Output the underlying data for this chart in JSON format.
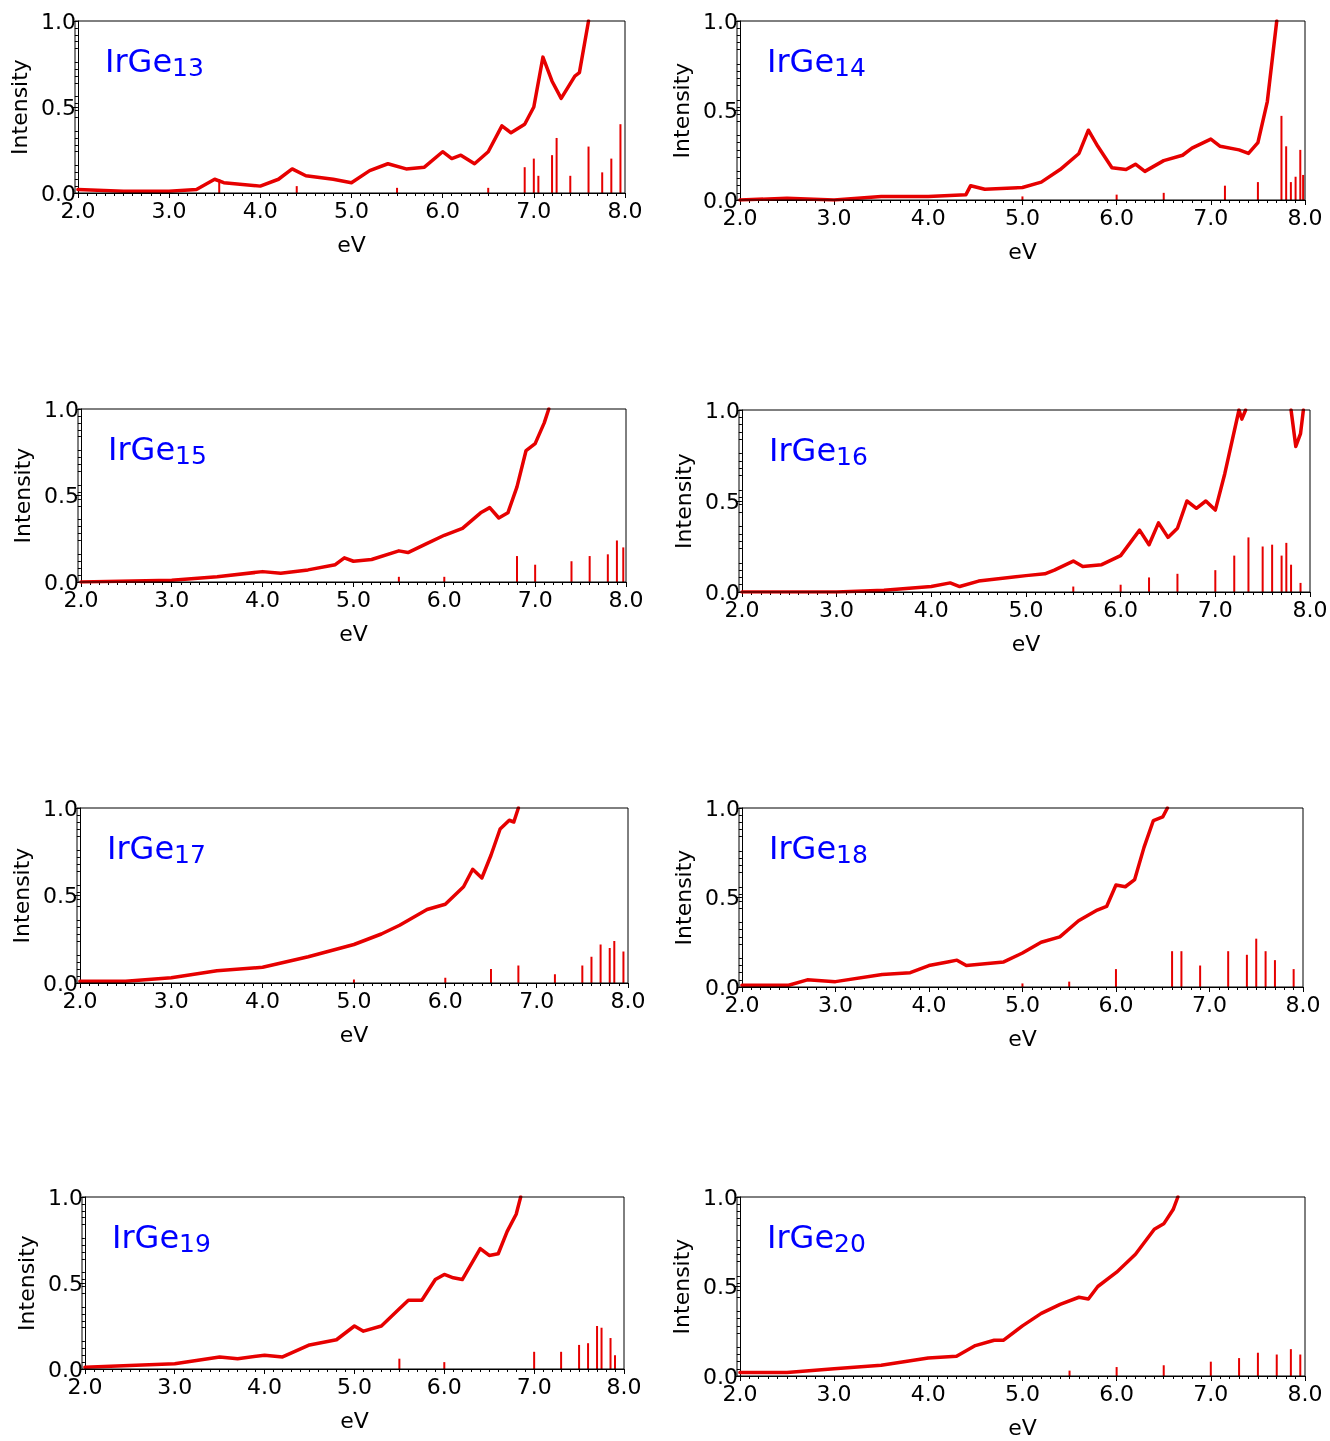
{
  "chart_data": [
    {
      "type": "line",
      "title": "IrGe$_{13}$",
      "xlabel": "eV",
      "ylabel": "Intensity",
      "marker": "none",
      "xlim": [
        2,
        8
      ],
      "xticks": [
        {
          "value": 2,
          "label": "2.0"
        },
        {
          "value": 3,
          "label": "3.0"
        },
        {
          "value": 4,
          "label": "4.0"
        },
        {
          "value": 5,
          "label": "5.0"
        },
        {
          "value": 6,
          "label": "6.0"
        },
        {
          "value": 7,
          "label": "7.0"
        },
        {
          "value": 8,
          "label": "8.0"
        }
      ],
      "ylim": [
        0,
        1
      ],
      "yticks": [
        {
          "value": 0,
          "label": "0.0"
        },
        {
          "value": 0.5,
          "label": "0.5"
        },
        {
          "value": 1,
          "label": "1.0"
        }
      ],
      "series": [
        {
          "color": "#e60000",
          "x": [
            2.0,
            2.5,
            3.0,
            3.3,
            3.5,
            3.6,
            4.0,
            4.2,
            4.35,
            4.5,
            4.8,
            5.0,
            5.2,
            5.4,
            5.6,
            5.8,
            6.0,
            6.1,
            6.2,
            6.35,
            6.5,
            6.65,
            6.75,
            6.9,
            7.0,
            7.1,
            7.2,
            7.3,
            7.45,
            7.5,
            7.6
          ],
          "values": [
            0.02,
            0.01,
            0.01,
            0.02,
            0.08,
            0.06,
            0.04,
            0.08,
            0.14,
            0.1,
            0.08,
            0.06,
            0.13,
            0.17,
            0.14,
            0.15,
            0.24,
            0.2,
            0.22,
            0.17,
            0.24,
            0.39,
            0.35,
            0.4,
            0.5,
            0.79,
            0.65,
            0.55,
            0.68,
            0.7,
            1.0
          ]
        },
        {
          "type": "bar",
          "color": "#e60000",
          "x": [
            3.55,
            4.4,
            5.5,
            6.5,
            6.9,
            7.0,
            7.05,
            7.2,
            7.25,
            7.4,
            7.6,
            7.75,
            7.85,
            7.95
          ],
          "values": [
            0.08,
            0.04,
            0.03,
            0.03,
            0.15,
            0.2,
            0.1,
            0.22,
            0.32,
            0.1,
            0.27,
            0.12,
            0.2,
            0.4
          ]
        }
      ]
    },
    {
      "type": "line",
      "title": "IrGe$_{14}$",
      "xlabel": "eV",
      "ylabel": "Intensity",
      "marker": "none",
      "xlim": [
        2,
        8
      ],
      "xticks": [
        {
          "value": 2,
          "label": "2.0"
        },
        {
          "value": 3,
          "label": "3.0"
        },
        {
          "value": 4,
          "label": "4.0"
        },
        {
          "value": 5,
          "label": "5.0"
        },
        {
          "value": 6,
          "label": "6.0"
        },
        {
          "value": 7,
          "label": "7.0"
        },
        {
          "value": 8,
          "label": "8.0"
        }
      ],
      "ylim": [
        0,
        1
      ],
      "yticks": [
        {
          "value": 0,
          "label": "0.0"
        },
        {
          "value": 0.5,
          "label": "0.5"
        },
        {
          "value": 1,
          "label": "1.0"
        }
      ],
      "series": [
        {
          "color": "#e60000",
          "x": [
            2.0,
            2.5,
            3.0,
            3.5,
            4.0,
            4.4,
            4.45,
            4.6,
            5.0,
            5.2,
            5.4,
            5.6,
            5.7,
            5.8,
            5.95,
            6.1,
            6.2,
            6.3,
            6.5,
            6.7,
            6.8,
            7.0,
            7.1,
            7.3,
            7.4,
            7.5,
            7.6,
            7.7
          ],
          "values": [
            0.0,
            0.01,
            0.0,
            0.02,
            0.02,
            0.03,
            0.08,
            0.06,
            0.07,
            0.1,
            0.17,
            0.26,
            0.39,
            0.3,
            0.18,
            0.17,
            0.2,
            0.16,
            0.22,
            0.25,
            0.29,
            0.34,
            0.3,
            0.28,
            0.26,
            0.32,
            0.55,
            1.0
          ]
        },
        {
          "type": "bar",
          "color": "#e60000",
          "x": [
            5.0,
            6.0,
            6.5,
            7.15,
            7.5,
            7.75,
            7.8,
            7.85,
            7.9,
            7.95,
            7.98
          ],
          "values": [
            0.02,
            0.03,
            0.04,
            0.08,
            0.1,
            0.47,
            0.3,
            0.1,
            0.13,
            0.28,
            0.14
          ]
        }
      ]
    },
    {
      "type": "line",
      "title": "IrGe$_{15}$",
      "xlabel": "eV",
      "ylabel": "Intensity",
      "marker": "none",
      "xlim": [
        2,
        8
      ],
      "xticks": [
        {
          "value": 2,
          "label": "2.0"
        },
        {
          "value": 3,
          "label": "3.0"
        },
        {
          "value": 4,
          "label": "4.0"
        },
        {
          "value": 5,
          "label": "5.0"
        },
        {
          "value": 6,
          "label": "6.0"
        },
        {
          "value": 7,
          "label": "7.0"
        },
        {
          "value": 8,
          "label": "8.0"
        }
      ],
      "ylim": [
        0,
        1
      ],
      "yticks": [
        {
          "value": 0,
          "label": "0.0"
        },
        {
          "value": 0.5,
          "label": "0.5"
        },
        {
          "value": 1,
          "label": "1.0"
        }
      ],
      "series": [
        {
          "color": "#e60000",
          "x": [
            2.0,
            3.0,
            3.5,
            4.0,
            4.2,
            4.5,
            4.8,
            4.9,
            5.0,
            5.2,
            5.5,
            5.6,
            5.8,
            6.0,
            6.2,
            6.4,
            6.5,
            6.6,
            6.7,
            6.8,
            6.9,
            7.0,
            7.1,
            7.15
          ],
          "values": [
            0.0,
            0.01,
            0.03,
            0.06,
            0.05,
            0.07,
            0.1,
            0.14,
            0.12,
            0.13,
            0.18,
            0.17,
            0.22,
            0.27,
            0.31,
            0.4,
            0.43,
            0.37,
            0.4,
            0.55,
            0.76,
            0.8,
            0.92,
            1.0
          ]
        },
        {
          "type": "bar",
          "color": "#e60000",
          "x": [
            5.5,
            6.0,
            6.8,
            7.0,
            7.4,
            7.6,
            7.8,
            7.9,
            7.97
          ],
          "values": [
            0.03,
            0.03,
            0.15,
            0.1,
            0.12,
            0.15,
            0.16,
            0.24,
            0.2
          ]
        }
      ]
    },
    {
      "type": "line",
      "title": "IrGe$_{16}$",
      "xlabel": "eV",
      "ylabel": "Intensity",
      "marker": "none",
      "xlim": [
        2,
        8
      ],
      "xticks": [
        {
          "value": 2,
          "label": "2.0"
        },
        {
          "value": 3,
          "label": "3.0"
        },
        {
          "value": 4,
          "label": "4.0"
        },
        {
          "value": 5,
          "label": "5.0"
        },
        {
          "value": 6,
          "label": "6.0"
        },
        {
          "value": 7,
          "label": "7.0"
        },
        {
          "value": 8,
          "label": "8.0"
        }
      ],
      "ylim": [
        0,
        1
      ],
      "yticks": [
        {
          "value": 0,
          "label": "0.0"
        },
        {
          "value": 0.5,
          "label": "0.5"
        },
        {
          "value": 1,
          "label": "1.0"
        }
      ],
      "series": [
        {
          "color": "#e60000",
          "x": [
            2.0,
            3.0,
            3.5,
            4.0,
            4.2,
            4.3,
            4.5,
            5.0,
            5.2,
            5.3,
            5.5,
            5.6,
            5.8,
            6.0,
            6.2,
            6.3,
            6.4,
            6.5,
            6.6,
            6.7,
            6.8,
            6.9,
            7.0,
            7.1,
            7.25,
            7.28,
            7.32,
            7.5,
            7.8,
            7.85,
            7.9,
            7.93
          ],
          "values": [
            0.0,
            0.0,
            0.01,
            0.03,
            0.05,
            0.03,
            0.06,
            0.09,
            0.1,
            0.12,
            0.17,
            0.14,
            0.15,
            0.2,
            0.34,
            0.26,
            0.38,
            0.3,
            0.35,
            0.5,
            0.46,
            0.5,
            0.45,
            0.65,
            1.0,
            0.95,
            1.0,
            null,
            1.0,
            0.8,
            0.87,
            1.0
          ]
        },
        {
          "type": "bar",
          "color": "#e60000",
          "x": [
            5.5,
            6.0,
            6.3,
            6.6,
            7.0,
            7.2,
            7.35,
            7.5,
            7.6,
            7.7,
            7.75,
            7.8,
            7.9
          ],
          "values": [
            0.03,
            0.04,
            0.08,
            0.1,
            0.12,
            0.2,
            0.3,
            0.25,
            0.26,
            0.2,
            0.27,
            0.15,
            0.05
          ]
        }
      ]
    },
    {
      "type": "line",
      "title": "IrGe$_{17}$",
      "xlabel": "eV",
      "ylabel": "Intensity",
      "marker": "none",
      "xlim": [
        2,
        8
      ],
      "xticks": [
        {
          "value": 2,
          "label": "2.0"
        },
        {
          "value": 3,
          "label": "3.0"
        },
        {
          "value": 4,
          "label": "4.0"
        },
        {
          "value": 5,
          "label": "5.0"
        },
        {
          "value": 6,
          "label": "6.0"
        },
        {
          "value": 7,
          "label": "7.0"
        },
        {
          "value": 8,
          "label": "8.0"
        }
      ],
      "ylim": [
        0,
        1
      ],
      "yticks": [
        {
          "value": 0,
          "label": "0.0"
        },
        {
          "value": 0.5,
          "label": "0.5"
        },
        {
          "value": 1,
          "label": "1.0"
        }
      ],
      "series": [
        {
          "color": "#e60000",
          "x": [
            2.0,
            2.5,
            3.0,
            3.5,
            4.0,
            4.5,
            5.0,
            5.3,
            5.5,
            5.8,
            6.0,
            6.2,
            6.3,
            6.4,
            6.5,
            6.6,
            6.7,
            6.75,
            6.8
          ],
          "values": [
            0.01,
            0.01,
            0.03,
            0.07,
            0.09,
            0.15,
            0.22,
            0.28,
            0.33,
            0.42,
            0.45,
            0.55,
            0.65,
            0.6,
            0.73,
            0.88,
            0.93,
            0.92,
            1.0
          ]
        },
        {
          "type": "bar",
          "color": "#e60000",
          "x": [
            5.0,
            6.0,
            6.5,
            6.8,
            7.2,
            7.5,
            7.6,
            7.7,
            7.8,
            7.85,
            7.95
          ],
          "values": [
            0.02,
            0.03,
            0.08,
            0.1,
            0.05,
            0.1,
            0.15,
            0.22,
            0.2,
            0.24,
            0.18
          ]
        }
      ]
    },
    {
      "type": "line",
      "title": "IrGe$_{18}$",
      "xlabel": "eV",
      "ylabel": "Intensity",
      "marker": "none",
      "xlim": [
        2,
        8
      ],
      "xticks": [
        {
          "value": 2,
          "label": "2.0"
        },
        {
          "value": 3,
          "label": "3.0"
        },
        {
          "value": 4,
          "label": "4.0"
        },
        {
          "value": 5,
          "label": "5.0"
        },
        {
          "value": 6,
          "label": "6.0"
        },
        {
          "value": 7,
          "label": "7.0"
        },
        {
          "value": 8,
          "label": "8.0"
        }
      ],
      "ylim": [
        0,
        1
      ],
      "yticks": [
        {
          "value": 0,
          "label": "0.0"
        },
        {
          "value": 0.5,
          "label": "0.5"
        },
        {
          "value": 1,
          "label": "1.0"
        }
      ],
      "series": [
        {
          "color": "#e60000",
          "x": [
            2.0,
            2.5,
            2.7,
            3.0,
            3.5,
            3.8,
            4.0,
            4.2,
            4.3,
            4.4,
            4.8,
            5.0,
            5.2,
            5.4,
            5.6,
            5.8,
            5.9,
            6.0,
            6.1,
            6.2,
            6.3,
            6.4,
            6.5,
            6.55
          ],
          "values": [
            0.01,
            0.01,
            0.04,
            0.03,
            0.07,
            0.08,
            0.12,
            0.14,
            0.15,
            0.12,
            0.14,
            0.19,
            0.25,
            0.28,
            0.37,
            0.43,
            0.45,
            0.57,
            0.56,
            0.6,
            0.78,
            0.93,
            0.95,
            1.0
          ]
        },
        {
          "type": "bar",
          "color": "#e60000",
          "x": [
            5.0,
            5.5,
            6.0,
            6.6,
            6.7,
            6.9,
            7.2,
            7.4,
            7.5,
            7.6,
            7.7,
            7.9
          ],
          "values": [
            0.02,
            0.03,
            0.1,
            0.2,
            0.2,
            0.12,
            0.2,
            0.18,
            0.27,
            0.2,
            0.15,
            0.1
          ]
        }
      ]
    },
    {
      "type": "line",
      "title": "IrGe$_{19}$",
      "xlabel": "eV",
      "ylabel": "Intensity",
      "marker": "none",
      "xlim": [
        2,
        8
      ],
      "xticks": [
        {
          "value": 2,
          "label": "2.0"
        },
        {
          "value": 3,
          "label": "3.0"
        },
        {
          "value": 4,
          "label": "4.0"
        },
        {
          "value": 5,
          "label": "5.0"
        },
        {
          "value": 6,
          "label": "6.0"
        },
        {
          "value": 7,
          "label": "7.0"
        },
        {
          "value": 8,
          "label": "8.0"
        }
      ],
      "ylim": [
        0,
        1
      ],
      "yticks": [
        {
          "value": 0,
          "label": "0.0"
        },
        {
          "value": 0.5,
          "label": "0.5"
        },
        {
          "value": 1,
          "label": "1.0"
        }
      ],
      "series": [
        {
          "color": "#e60000",
          "x": [
            2.0,
            2.5,
            3.0,
            3.5,
            3.7,
            4.0,
            4.2,
            4.5,
            4.8,
            5.0,
            5.1,
            5.3,
            5.5,
            5.6,
            5.75,
            5.9,
            6.0,
            6.1,
            6.2,
            6.4,
            6.5,
            6.6,
            6.7,
            6.8,
            6.85
          ],
          "values": [
            0.01,
            0.02,
            0.03,
            0.07,
            0.06,
            0.08,
            0.07,
            0.14,
            0.17,
            0.25,
            0.22,
            0.25,
            0.35,
            0.4,
            0.4,
            0.52,
            0.55,
            0.53,
            0.52,
            0.7,
            0.66,
            0.67,
            0.8,
            0.9,
            1.0
          ]
        },
        {
          "type": "bar",
          "color": "#e60000",
          "x": [
            5.5,
            6.0,
            7.0,
            7.3,
            7.5,
            7.6,
            7.7,
            7.75,
            7.85,
            7.9
          ],
          "values": [
            0.06,
            0.04,
            0.1,
            0.1,
            0.14,
            0.15,
            0.25,
            0.24,
            0.18,
            0.08
          ]
        }
      ]
    },
    {
      "type": "line",
      "title": "IrGe$_{20}$",
      "xlabel": "eV",
      "ylabel": "Intensity",
      "marker": "none",
      "xlim": [
        2,
        8
      ],
      "xticks": [
        {
          "value": 2,
          "label": "2.0"
        },
        {
          "value": 3,
          "label": "3.0"
        },
        {
          "value": 4,
          "label": "4.0"
        },
        {
          "value": 5,
          "label": "5.0"
        },
        {
          "value": 6,
          "label": "6.0"
        },
        {
          "value": 7,
          "label": "7.0"
        },
        {
          "value": 8,
          "label": "8.0"
        }
      ],
      "ylim": [
        0,
        1
      ],
      "yticks": [
        {
          "value": 0,
          "label": "0.0"
        },
        {
          "value": 0.5,
          "label": "0.5"
        },
        {
          "value": 1,
          "label": "1.0"
        }
      ],
      "series": [
        {
          "color": "#e60000",
          "x": [
            2.0,
            2.5,
            3.0,
            3.5,
            4.0,
            4.3,
            4.5,
            4.7,
            4.8,
            5.0,
            5.2,
            5.4,
            5.6,
            5.7,
            5.8,
            6.0,
            6.2,
            6.4,
            6.5,
            6.6,
            6.65
          ],
          "values": [
            0.02,
            0.02,
            0.04,
            0.06,
            0.1,
            0.11,
            0.17,
            0.2,
            0.2,
            0.28,
            0.35,
            0.4,
            0.44,
            0.43,
            0.5,
            0.58,
            0.68,
            0.82,
            0.85,
            0.93,
            1.0
          ]
        },
        {
          "type": "bar",
          "color": "#e60000",
          "x": [
            5.5,
            6.0,
            6.5,
            7.0,
            7.3,
            7.5,
            7.7,
            7.85,
            7.95
          ],
          "values": [
            0.03,
            0.05,
            0.06,
            0.08,
            0.1,
            0.13,
            0.12,
            0.15,
            0.12
          ]
        }
      ]
    }
  ]
}
